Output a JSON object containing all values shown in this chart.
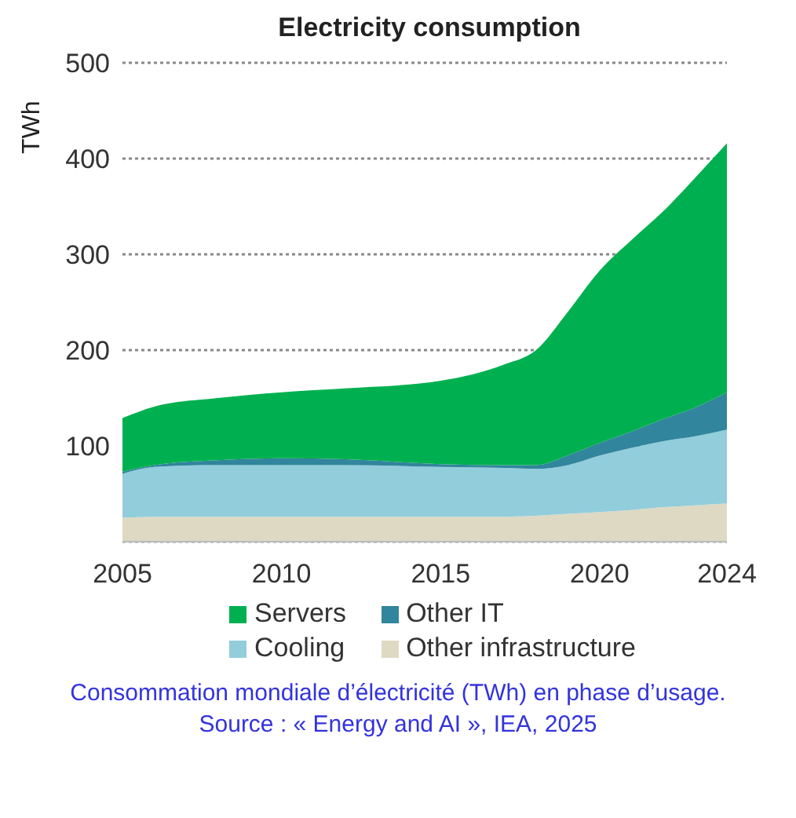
{
  "chart_data": {
    "type": "area",
    "title": "Electricity consumption",
    "ylabel": "TWh",
    "stacked": true,
    "x": [
      2005,
      2006,
      2008,
      2010,
      2012,
      2015,
      2017,
      2018,
      2019,
      2020,
      2021,
      2022,
      2023,
      2024
    ],
    "series": [
      {
        "name": "Other infrastructure",
        "color": "#ddd9c3",
        "values": [
          25,
          26,
          26,
          26,
          26,
          26,
          26,
          27,
          29,
          31,
          33,
          36,
          38,
          40
        ]
      },
      {
        "name": "Cooling",
        "color": "#92cddc",
        "values": [
          46,
          52,
          54,
          54,
          54,
          52,
          51,
          49,
          51,
          59,
          65,
          69,
          72,
          77
        ]
      },
      {
        "name": "Other IT",
        "color": "#31859c",
        "values": [
          2,
          2,
          5,
          7,
          6,
          3,
          3,
          4,
          10,
          13,
          17,
          23,
          30,
          39
        ]
      },
      {
        "name": "Servers",
        "color": "#00b050",
        "values": [
          56,
          61,
          65,
          69,
          74,
          87,
          105,
          120,
          150,
          180,
          200,
          217,
          240,
          260
        ]
      }
    ],
    "xlim": [
      2005,
      2024
    ],
    "xticks": [
      2005,
      2010,
      2015,
      2020,
      2024
    ],
    "ylim": [
      0,
      500
    ],
    "yticks": [
      100,
      200,
      300,
      400,
      500
    ],
    "grid": "y",
    "line_style": "dotted",
    "legend": "bottom",
    "annotations": [
      "Consommation mondiale d’électricité (TWh) en phase d’usage. Source : « Energy and AI », IEA, 2025"
    ]
  }
}
